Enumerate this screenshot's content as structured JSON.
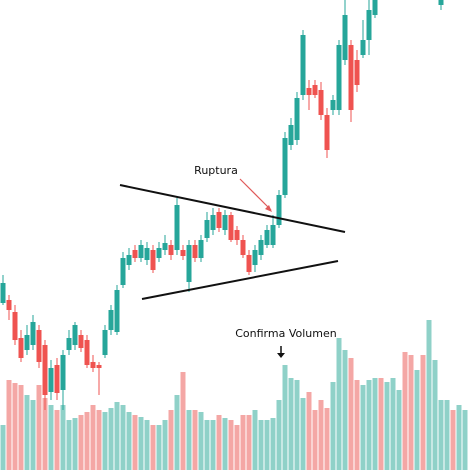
{
  "chart_data": {
    "type": "candlestick",
    "annotations": [
      "Ruptura",
      "Confirma Volumen"
    ],
    "up_color": "#26a69a",
    "down_color": "#ef5350",
    "volume_up_color": "#8fd1c8",
    "volume_down_color": "#f4a7a5",
    "open": [
      167,
      170,
      158,
      132,
      120,
      125,
      140,
      125,
      78,
      105,
      80,
      120,
      125,
      135,
      130,
      108,
      105,
      115,
      140,
      138,
      185,
      205,
      220,
      212,
      210,
      220,
      212,
      220,
      225,
      220,
      220,
      188,
      225,
      212,
      232,
      240,
      258,
      240,
      255,
      240,
      230,
      215,
      205,
      215,
      225,
      225,
      245,
      275,
      325,
      330,
      375,
      382,
      385,
      380,
      355,
      360,
      360,
      410,
      425,
      410,
      415,
      430,
      455,
      null,
      null,
      null,
      null,
      null,
      null,
      null,
      null,
      null,
      null,
      465,
      null,
      null,
      null,
      null
    ],
    "high": [
      195,
      175,
      165,
      140,
      145,
      155,
      145,
      130,
      110,
      112,
      120,
      140,
      148,
      140,
      135,
      115,
      108,
      145,
      165,
      185,
      218,
      222,
      225,
      230,
      228,
      225,
      228,
      235,
      230,
      272,
      225,
      230,
      230,
      235,
      258,
      262,
      262,
      260,
      258,
      244,
      235,
      220,
      225,
      235,
      245,
      255,
      280,
      338,
      352,
      378,
      440,
      390,
      390,
      388,
      362,
      375,
      430,
      470,
      430,
      420,
      450,
      470,
      490,
      null,
      null,
      null,
      null,
      null,
      null,
      null,
      null,
      null,
      null,
      478,
      null,
      null,
      null,
      null
    ],
    "low": [
      165,
      150,
      125,
      108,
      115,
      120,
      102,
      60,
      70,
      70,
      60,
      115,
      120,
      118,
      102,
      98,
      75,
      112,
      135,
      135,
      182,
      200,
      208,
      208,
      205,
      197,
      208,
      215,
      210,
      215,
      210,
      178,
      208,
      208,
      228,
      235,
      238,
      235,
      228,
      225,
      212,
      195,
      198,
      210,
      222,
      222,
      242,
      272,
      320,
      325,
      370,
      360,
      372,
      350,
      312,
      355,
      355,
      405,
      348,
      378,
      412,
      415,
      452,
      null,
      null,
      null,
      null,
      null,
      null,
      null,
      null,
      null,
      null,
      460,
      null,
      null,
      null,
      null
    ],
    "close": [
      187,
      160,
      130,
      112,
      135,
      148,
      108,
      75,
      102,
      77,
      115,
      132,
      145,
      122,
      105,
      102,
      102,
      140,
      160,
      180,
      212,
      215,
      212,
      225,
      222,
      200,
      222,
      227,
      215,
      265,
      214,
      225,
      212,
      230,
      250,
      255,
      242,
      255,
      230,
      230,
      215,
      198,
      220,
      230,
      240,
      245,
      275,
      332,
      345,
      372,
      435,
      375,
      375,
      355,
      320,
      370,
      425,
      455,
      360,
      385,
      430,
      460,
      480,
      null,
      null,
      null,
      null,
      null,
      null,
      null,
      null,
      null,
      null,
      475,
      null,
      null,
      null,
      null
    ],
    "volume": [
      45,
      90,
      87,
      85,
      75,
      70,
      85,
      72,
      65,
      60,
      65,
      50,
      52,
      55,
      58,
      65,
      60,
      58,
      62,
      68,
      65,
      58,
      55,
      53,
      50,
      45,
      45,
      50,
      60,
      75,
      98,
      60,
      60,
      58,
      50,
      50,
      55,
      52,
      50,
      45,
      55,
      55,
      60,
      50,
      50,
      52,
      70,
      105,
      92,
      90,
      72,
      78,
      60,
      70,
      62,
      88,
      132,
      120,
      112,
      90,
      85,
      90,
      92,
      92,
      88,
      92,
      80,
      118,
      115,
      100,
      115,
      150,
      110,
      70,
      70,
      60,
      65,
      60
    ],
    "volume_direction": [
      "up",
      "down",
      "down",
      "down",
      "up",
      "up",
      "down",
      "down",
      "up",
      "down",
      "up",
      "up",
      "up",
      "down",
      "down",
      "down",
      "down",
      "up",
      "up",
      "up",
      "up",
      "up",
      "down",
      "up",
      "up",
      "down",
      "up",
      "up",
      "down",
      "up",
      "down",
      "up",
      "down",
      "up",
      "up",
      "up",
      "down",
      "up",
      "down",
      "down",
      "down",
      "down",
      "up",
      "up",
      "up",
      "up",
      "up",
      "up",
      "up",
      "up",
      "up",
      "down",
      "down",
      "down",
      "down",
      "up",
      "up",
      "up",
      "down",
      "down",
      "up",
      "up",
      "up",
      "down",
      "up",
      "up",
      "up",
      "down",
      "down",
      "up",
      "down",
      "up",
      "up",
      "up",
      "up",
      "down",
      "up",
      "up"
    ]
  }
}
